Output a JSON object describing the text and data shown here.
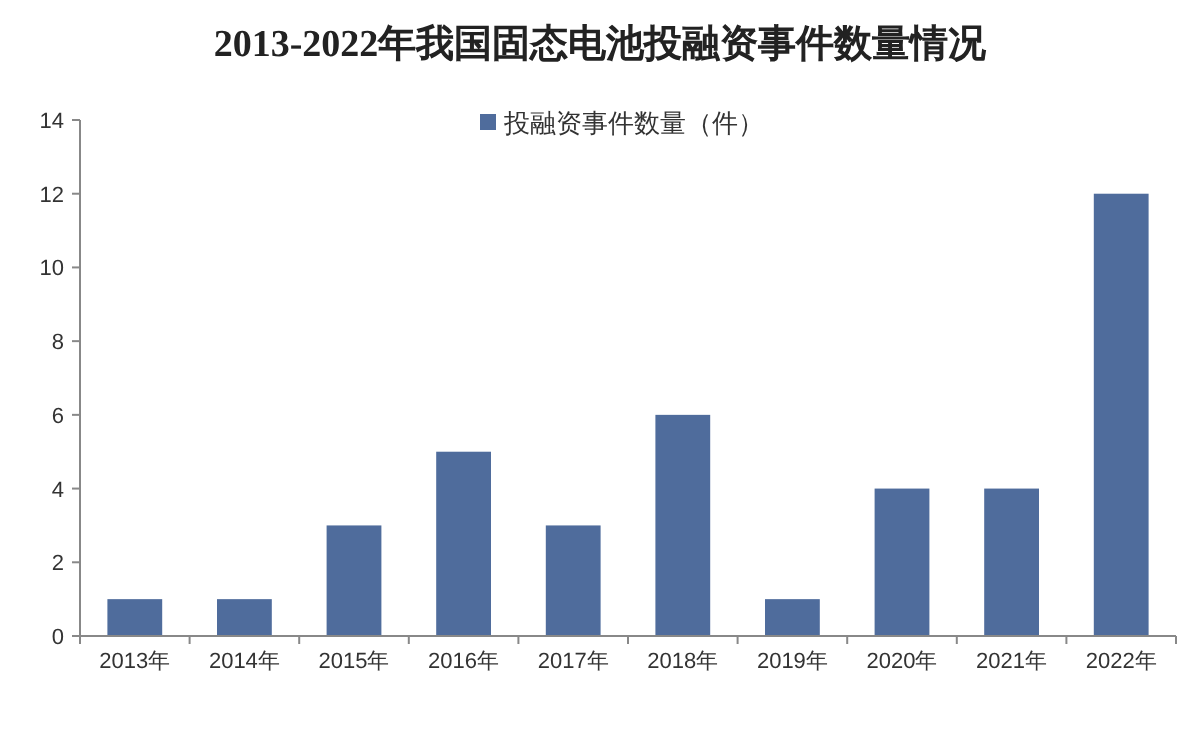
{
  "chart_data": {
    "type": "bar",
    "title": "2013-2022年我国固态电池投融资事件数量情况",
    "categories": [
      "2013年",
      "2014年",
      "2015年",
      "2016年",
      "2017年",
      "2018年",
      "2019年",
      "2020年",
      "2021年",
      "2022年"
    ],
    "series": [
      {
        "name": "投融资事件数量（件）",
        "color": "#4f6c9c",
        "values": [
          1,
          1,
          3,
          5,
          3,
          6,
          1,
          4,
          4,
          12
        ]
      }
    ],
    "ylim": [
      0,
      14
    ],
    "yticks": [
      0,
      2,
      4,
      6,
      8,
      10,
      12,
      14
    ],
    "legend": "top",
    "grid": false
  }
}
